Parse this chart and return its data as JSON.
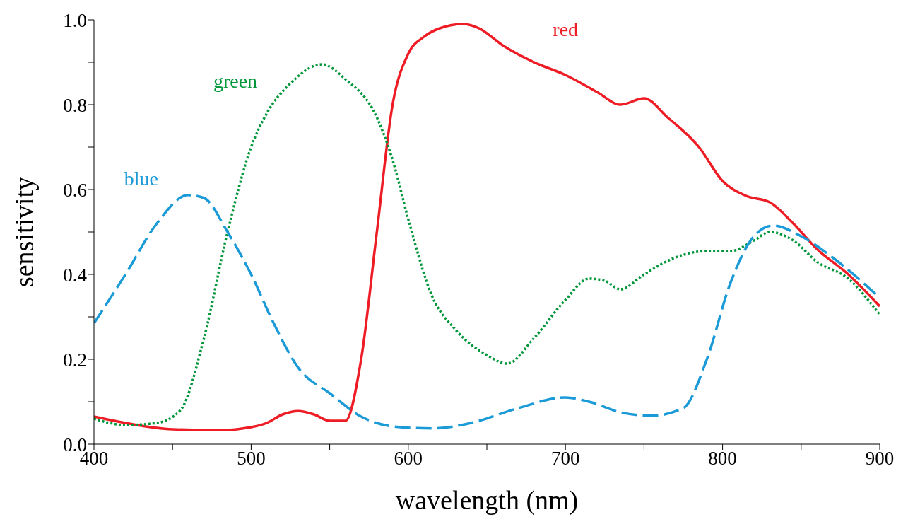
{
  "chart_data": {
    "type": "line",
    "xlabel": "wavelength (nm)",
    "ylabel": "sensitivity",
    "xlim": [
      400,
      900
    ],
    "ylim": [
      0,
      1
    ],
    "xticks": [
      400,
      {
        "value": 450,
        "label": null
      },
      500,
      {
        "value": 550,
        "label": null
      },
      600,
      {
        "value": 650,
        "label": null
      },
      700,
      {
        "value": 750,
        "label": null
      },
      800,
      {
        "value": 850,
        "label": null
      },
      900
    ],
    "yticks": [
      {
        "value": 0,
        "label": "0.0"
      },
      {
        "value": 0.1,
        "label": null
      },
      {
        "value": 0.2,
        "label": "0.2"
      },
      {
        "value": 0.3,
        "label": null
      },
      {
        "value": 0.4,
        "label": "0.4"
      },
      {
        "value": 0.5,
        "label": null
      },
      {
        "value": 0.6,
        "label": "0.6"
      },
      {
        "value": 0.7,
        "label": null
      },
      {
        "value": 0.8,
        "label": "0.8"
      },
      {
        "value": 0.9,
        "label": null
      },
      {
        "value": 1,
        "label": "1.0"
      }
    ],
    "grid": false,
    "legend": false,
    "marker": "none",
    "series": [
      {
        "name": "red",
        "color": "#ee1c25",
        "line_style": "solid",
        "x": [
          400,
          420,
          450,
          480,
          500,
          510,
          520,
          530,
          540,
          550,
          560,
          570,
          580,
          590,
          600,
          610,
          620,
          635,
          645,
          660,
          680,
          700,
          720,
          735,
          750,
          765,
          785,
          800,
          815,
          830,
          845,
          860,
          880,
          900
        ],
        "values": [
          0.065,
          0.05,
          0.035,
          0.033,
          0.04,
          0.05,
          0.07,
          0.078,
          0.07,
          0.055,
          0.055,
          0.2,
          0.5,
          0.8,
          0.92,
          0.96,
          0.98,
          0.99,
          0.98,
          0.94,
          0.9,
          0.87,
          0.83,
          0.8,
          0.815,
          0.77,
          0.7,
          0.62,
          0.585,
          0.57,
          0.52,
          0.46,
          0.4,
          0.325
        ]
      },
      {
        "name": "green",
        "color": "#00973a",
        "line_style": "dotted",
        "x": [
          400,
          420,
          440,
          455,
          470,
          485,
          500,
          510,
          525,
          545,
          560,
          580,
          590,
          600,
          615,
          630,
          650,
          663,
          680,
          700,
          715,
          725,
          735,
          750,
          770,
          790,
          805,
          820,
          830,
          845,
          860,
          880,
          900
        ],
        "values": [
          0.06,
          0.045,
          0.05,
          0.08,
          0.25,
          0.5,
          0.7,
          0.78,
          0.85,
          0.895,
          0.86,
          0.77,
          0.67,
          0.53,
          0.35,
          0.27,
          0.21,
          0.19,
          0.25,
          0.34,
          0.39,
          0.385,
          0.365,
          0.4,
          0.44,
          0.455,
          0.455,
          0.48,
          0.5,
          0.48,
          0.43,
          0.39,
          0.305
        ]
      },
      {
        "name": "blue",
        "color": "#1a9ad7",
        "line_style": "dashed",
        "x": [
          400,
          420,
          440,
          460,
          470,
          485,
          500,
          515,
          530,
          550,
          570,
          590,
          615,
          640,
          670,
          700,
          715,
          735,
          755,
          775,
          790,
          805,
          820,
          832,
          850,
          870,
          900
        ],
        "values": [
          0.285,
          0.4,
          0.52,
          0.587,
          0.58,
          0.5,
          0.4,
          0.28,
          0.18,
          0.12,
          0.065,
          0.042,
          0.037,
          0.05,
          0.085,
          0.11,
          0.1,
          0.075,
          0.067,
          0.085,
          0.2,
          0.38,
          0.49,
          0.515,
          0.49,
          0.44,
          0.345
        ]
      }
    ]
  }
}
